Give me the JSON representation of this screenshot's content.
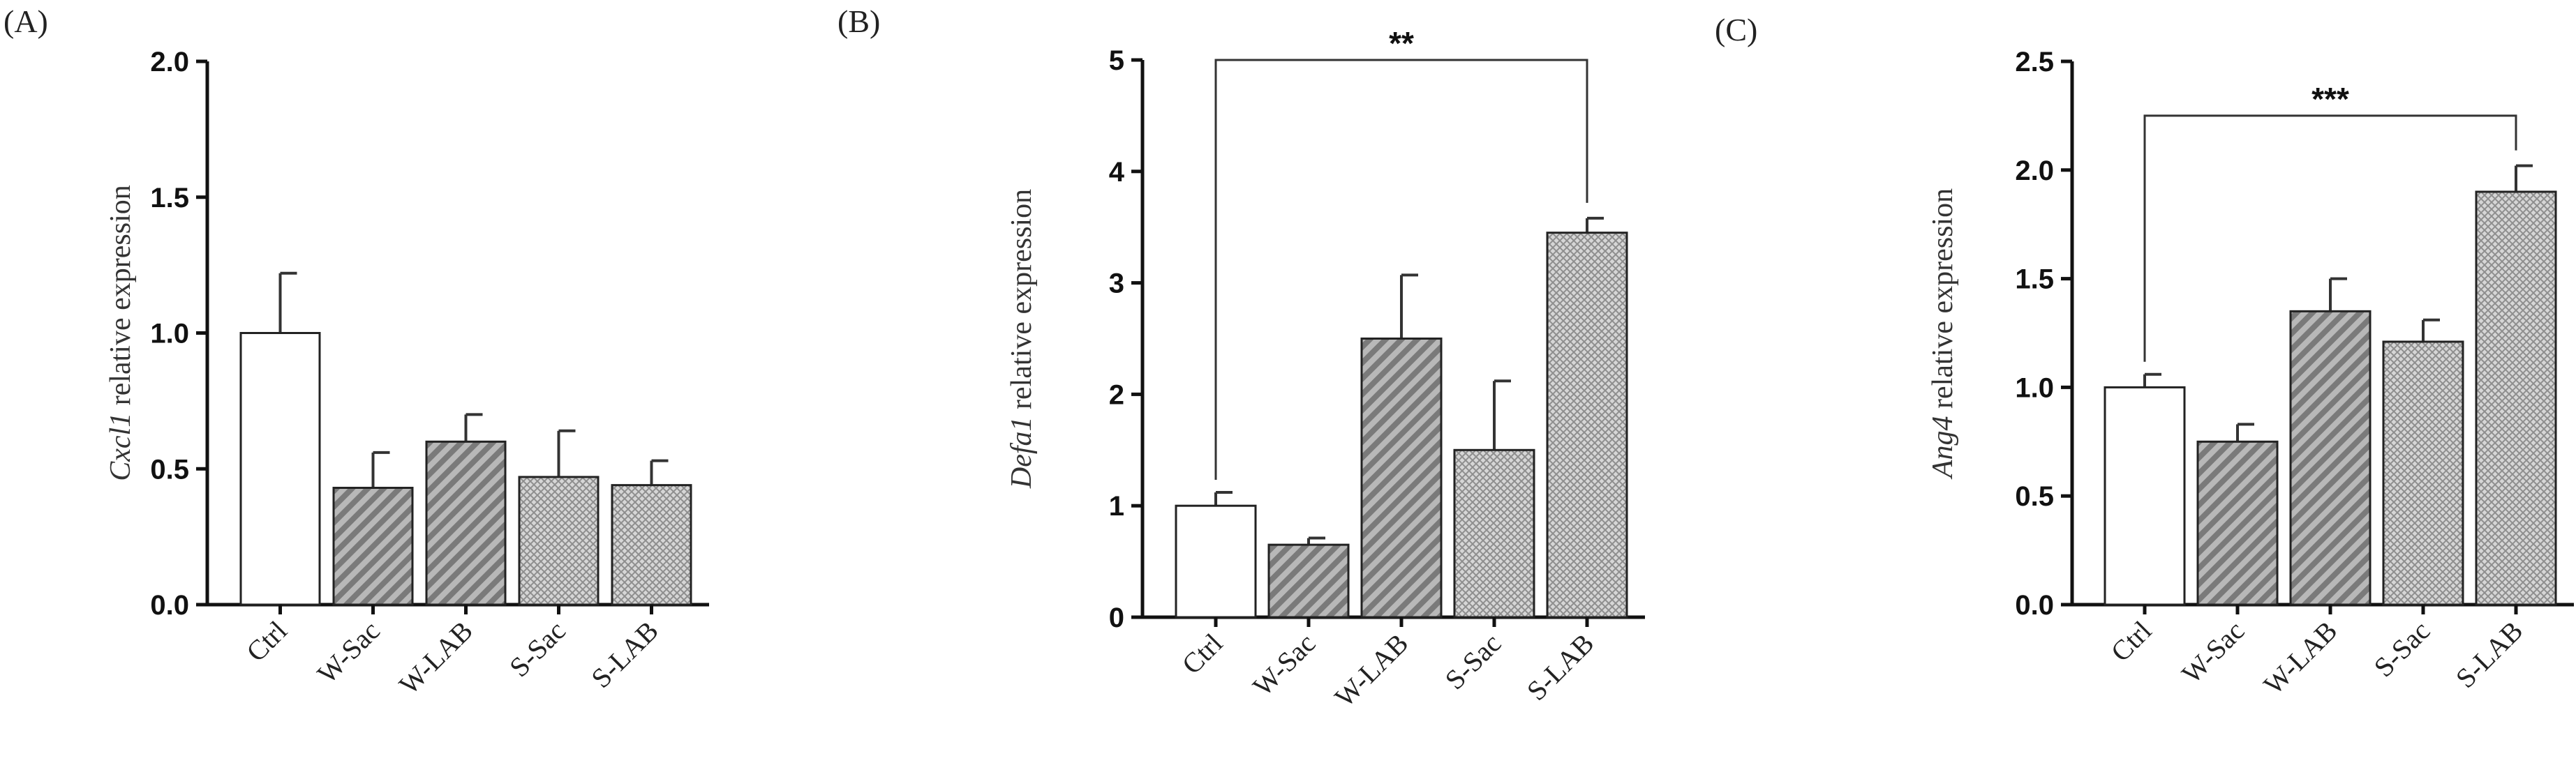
{
  "chart_data": [
    {
      "type": "bar",
      "panel": "(A)",
      "ylabel_gene": "Cxcl1",
      "ylabel_rest": " relative expression",
      "categories": [
        "Ctrl",
        "W-Sac",
        "W-LAB",
        "S-Sac",
        "S-LAB"
      ],
      "values": [
        1.0,
        0.43,
        0.6,
        0.47,
        0.44
      ],
      "errors": [
        0.22,
        0.13,
        0.1,
        0.17,
        0.09
      ],
      "ylim": [
        0,
        2.0
      ],
      "yticks": [
        "0.0",
        "0.5",
        "1.0",
        "1.5",
        "2.0"
      ],
      "significance": null
    },
    {
      "type": "bar",
      "panel": "(B)",
      "ylabel_gene": "Defa1",
      "ylabel_rest": " relative expression",
      "categories": [
        "Ctrl",
        "W-Sac",
        "W-LAB",
        "S-Sac",
        "S-LAB"
      ],
      "values": [
        1.0,
        0.65,
        2.5,
        1.5,
        3.45
      ],
      "errors": [
        0.12,
        0.06,
        0.57,
        0.62,
        0.13
      ],
      "ylim": [
        0,
        5
      ],
      "yticks": [
        "0",
        "1",
        "2",
        "3",
        "4",
        "5"
      ],
      "significance": {
        "from": "Ctrl",
        "to": "S-LAB",
        "label": "**",
        "level": 5.0
      }
    },
    {
      "type": "bar",
      "panel": "(C)",
      "ylabel_gene": "Ang4",
      "ylabel_rest": " relative expression",
      "categories": [
        "Ctrl",
        "W-Sac",
        "W-LAB",
        "S-Sac",
        "S-LAB"
      ],
      "values": [
        1.0,
        0.75,
        1.35,
        1.21,
        1.9
      ],
      "errors": [
        0.06,
        0.08,
        0.15,
        0.1,
        0.12
      ],
      "ylim": [
        0,
        2.5
      ],
      "yticks": [
        "0.0",
        "0.5",
        "1.0",
        "1.5",
        "2.0",
        "2.5"
      ],
      "significance": {
        "from": "Ctrl",
        "to": "S-LAB",
        "label": "***",
        "level": 2.25
      }
    }
  ],
  "fills": {
    "Ctrl": "white",
    "W-Sac": "diagonal-stripes",
    "W-LAB": "diagonal-stripes",
    "S-Sac": "crosshatch",
    "S-LAB": "crosshatch"
  },
  "colors": {
    "stripe_dark": "#7a7a7a",
    "stripe_light": "#b8b8b8",
    "hatch_base": "#d6d6d6",
    "hatch_line": "#8e8e8e"
  }
}
